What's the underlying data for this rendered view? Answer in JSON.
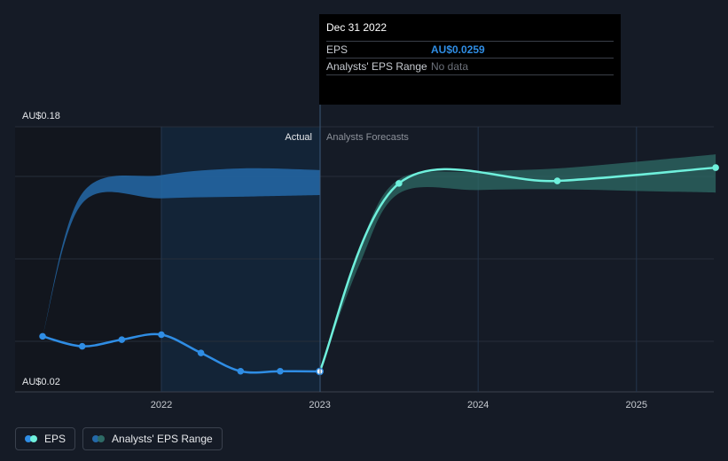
{
  "chart_data": {
    "type": "line",
    "title": "",
    "ylabel": "",
    "y_labels": [
      "AU$0.18",
      "AU$0.02"
    ],
    "x_ticks": [
      "2022",
      "2023",
      "2024",
      "2025"
    ],
    "region_labels": {
      "actual": "Actual",
      "forecast": "Analysts Forecasts"
    },
    "series": [
      {
        "name": "EPS",
        "color": "#2f8de4",
        "points": [
          {
            "x": 2021.25,
            "y": 0.047
          },
          {
            "x": 2021.5,
            "y": 0.041
          },
          {
            "x": 2021.75,
            "y": 0.045
          },
          {
            "x": 2022.0,
            "y": 0.048
          },
          {
            "x": 2022.25,
            "y": 0.037
          },
          {
            "x": 2022.5,
            "y": 0.026
          },
          {
            "x": 2022.75,
            "y": 0.026
          },
          {
            "x": 2023.0,
            "y": 0.0259
          }
        ]
      },
      {
        "name": "EPS forecast",
        "color": "#6ff0dc",
        "points": [
          {
            "x": 2023.0,
            "y": 0.0259
          },
          {
            "x": 2023.5,
            "y": 0.139
          },
          {
            "x": 2024.5,
            "y": 0.1405
          },
          {
            "x": 2025.5,
            "y": 0.1485
          }
        ]
      }
    ],
    "ranges": [
      {
        "name": "Analysts' EPS Range (past)",
        "color": "#2469a8",
        "x": [
          2021.25,
          2021.5,
          2022.0,
          2022.5,
          2023.0
        ],
        "low": [
          0.047,
          0.127,
          0.13,
          0.131,
          0.132
        ],
        "high": [
          0.047,
          0.133,
          0.144,
          0.148,
          0.147
        ]
      },
      {
        "name": "Analysts' EPS Range (forecast)",
        "color": "#2e6b66",
        "x": [
          2023.0,
          2023.25,
          2023.5,
          2024.0,
          2024.5,
          2025.0,
          2025.5
        ],
        "low": [
          0.0259,
          0.09,
          0.133,
          0.135,
          0.1355,
          0.1345,
          0.1335
        ],
        "high": [
          0.0259,
          0.1,
          0.1415,
          0.146,
          0.148,
          0.152,
          0.1565
        ]
      }
    ]
  },
  "tooltip": {
    "date": "Dec 31 2022",
    "eps_label": "EPS",
    "eps_value": "AU$0.0259",
    "range_label": "Analysts' EPS Range",
    "range_value": "No data"
  },
  "legend": {
    "eps": "EPS",
    "range": "Analysts' EPS Range",
    "eps_colors": [
      "#2f8de4",
      "#6ff0dc"
    ],
    "range_colors": [
      "#2469a8",
      "#2e6b66"
    ]
  }
}
